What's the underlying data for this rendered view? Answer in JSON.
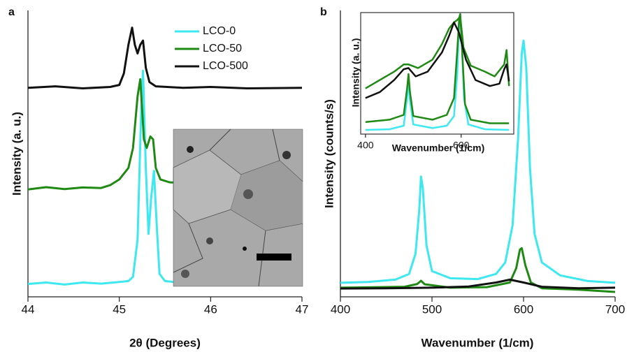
{
  "chart_data": [
    {
      "type": "line",
      "label": "a",
      "xlabel": "2θ (Degrees)",
      "ylabel": "Intensity (a. u.)",
      "xlim": [
        44,
        47
      ],
      "xticks": [
        44,
        45,
        46,
        47
      ],
      "ylim": [
        0,
        100
      ],
      "legend": "upper right",
      "series": [
        {
          "name": "LCO-0",
          "color": "#3de8f0",
          "x": [
            44,
            44.2,
            44.4,
            44.6,
            44.8,
            45.0,
            45.1,
            45.15,
            45.2,
            45.24,
            45.26,
            45.29,
            45.32,
            45.35,
            45.38,
            45.41,
            45.44,
            45.5,
            45.7,
            46,
            46.3,
            46.6,
            47
          ],
          "values": [
            4.5,
            5,
            4.3,
            5,
            4.6,
            5.2,
            5.5,
            7,
            20,
            65,
            79,
            45,
            22,
            35,
            44,
            25,
            8,
            5.5,
            4.8,
            5.2,
            4.6,
            5,
            4.7
          ]
        },
        {
          "name": "LCO-50",
          "color": "#1f8a13",
          "x": [
            44,
            44.2,
            44.4,
            44.6,
            44.8,
            44.9,
            45.0,
            45.1,
            45.15,
            45.2,
            45.23,
            45.27,
            45.3,
            45.34,
            45.37,
            45.4,
            45.45,
            45.55,
            45.8,
            46,
            46.3,
            46.6,
            47
          ],
          "values": [
            37.5,
            38.3,
            37.6,
            38.2,
            38,
            39,
            41,
            45,
            52,
            70,
            76,
            55,
            52,
            56,
            55,
            45,
            41,
            40,
            39.5,
            39.2,
            38.8,
            38.5,
            38
          ]
        },
        {
          "name": "LCO-500",
          "color": "#111111",
          "x": [
            44,
            44.3,
            44.6,
            44.9,
            45.0,
            45.05,
            45.1,
            45.14,
            45.17,
            45.2,
            45.23,
            45.26,
            45.29,
            45.33,
            45.4,
            45.7,
            46,
            46.4,
            47
          ],
          "values": [
            73,
            73.5,
            72.8,
            73.3,
            74,
            78,
            88,
            94,
            88,
            85,
            88,
            89.5,
            80,
            75,
            73.5,
            73,
            73.3,
            72.8,
            73
          ]
        }
      ]
    },
    {
      "type": "line",
      "label": "b",
      "xlabel": "Wavenumber (1/cm)",
      "ylabel": "Intensity (counts/s)",
      "xlim": [
        400,
        700
      ],
      "xticks": [
        400,
        500,
        600,
        700
      ],
      "ylim": [
        0,
        100
      ],
      "series": [
        {
          "color": "#3de8f0",
          "x": [
            400,
            430,
            460,
            475,
            482,
            486,
            488,
            490,
            494,
            500,
            520,
            550,
            570,
            580,
            588,
            594,
            598,
            600,
            603,
            607,
            612,
            620,
            640,
            670,
            700
          ],
          "values": [
            4.9,
            5.2,
            6,
            8,
            15,
            30,
            42,
            38,
            18,
            9,
            6.5,
            6.2,
            8,
            12,
            25,
            55,
            85,
            89.5,
            80,
            45,
            22,
            12,
            7.5,
            5.5,
            4.9
          ]
        },
        {
          "color": "#1f8a13",
          "x": [
            400,
            470,
            484,
            488,
            492,
            520,
            560,
            585,
            592,
            596,
            598,
            602,
            608,
            620,
            660,
            700
          ],
          "values": [
            3.2,
            3.5,
            4.5,
            5.6,
            4.4,
            3.2,
            3.4,
            5,
            10,
            16.5,
            17,
            11,
            5,
            3,
            2.5,
            1.7
          ]
        },
        {
          "color": "#111111",
          "x": [
            400,
            450,
            500,
            540,
            570,
            585,
            600,
            620,
            660,
            700
          ],
          "values": [
            2.9,
            3,
            3.2,
            3.6,
            5,
            6,
            5,
            3.5,
            3,
            3.2
          ]
        }
      ]
    },
    {
      "type": "line",
      "xlabel": "Wavenumber (1/cm)",
      "ylabel": "Intensity (a. u.)",
      "xlim": [
        390,
        710
      ],
      "xticks": [
        400,
        600
      ],
      "ylim": [
        0,
        100
      ],
      "series": [
        {
          "color": "#3de8f0",
          "x": [
            400,
            450,
            480,
            487,
            490,
            493,
            500,
            540,
            570,
            585,
            592,
            596,
            598,
            601,
            606,
            615,
            650,
            700
          ],
          "values": [
            3.5,
            4,
            7,
            30,
            45,
            28,
            8,
            5,
            7,
            15,
            50,
            95,
            99,
            80,
            30,
            8,
            4,
            3.5
          ]
        },
        {
          "color": "#1f8a13",
          "x": [
            400,
            450,
            480,
            487,
            490,
            493,
            500,
            540,
            570,
            585,
            592,
            596,
            598,
            602,
            608,
            620,
            660,
            700
          ],
          "values": [
            10,
            12,
            16,
            38,
            50,
            35,
            15,
            12,
            16,
            30,
            70,
            97,
            100,
            70,
            25,
            12,
            9,
            9
          ]
        },
        {
          "color": "#1f8a13",
          "x": [
            400,
            430,
            460,
            480,
            490,
            510,
            540,
            560,
            575,
            585,
            592,
            598,
            605,
            620,
            650,
            670,
            690,
            695,
            700
          ],
          "values": [
            38,
            45,
            52,
            58,
            58,
            55,
            62,
            75,
            88,
            93,
            95,
            98,
            72,
            57,
            52,
            48,
            58,
            70,
            40
          ]
        },
        {
          "color": "#111111",
          "x": [
            400,
            430,
            460,
            480,
            490,
            505,
            530,
            560,
            575,
            585,
            595,
            610,
            630,
            660,
            680,
            690,
            695,
            700
          ],
          "values": [
            30,
            35,
            45,
            54,
            55,
            48,
            52,
            68,
            82,
            93,
            85,
            62,
            45,
            40,
            42,
            54,
            58,
            44
          ]
        }
      ]
    }
  ]
}
